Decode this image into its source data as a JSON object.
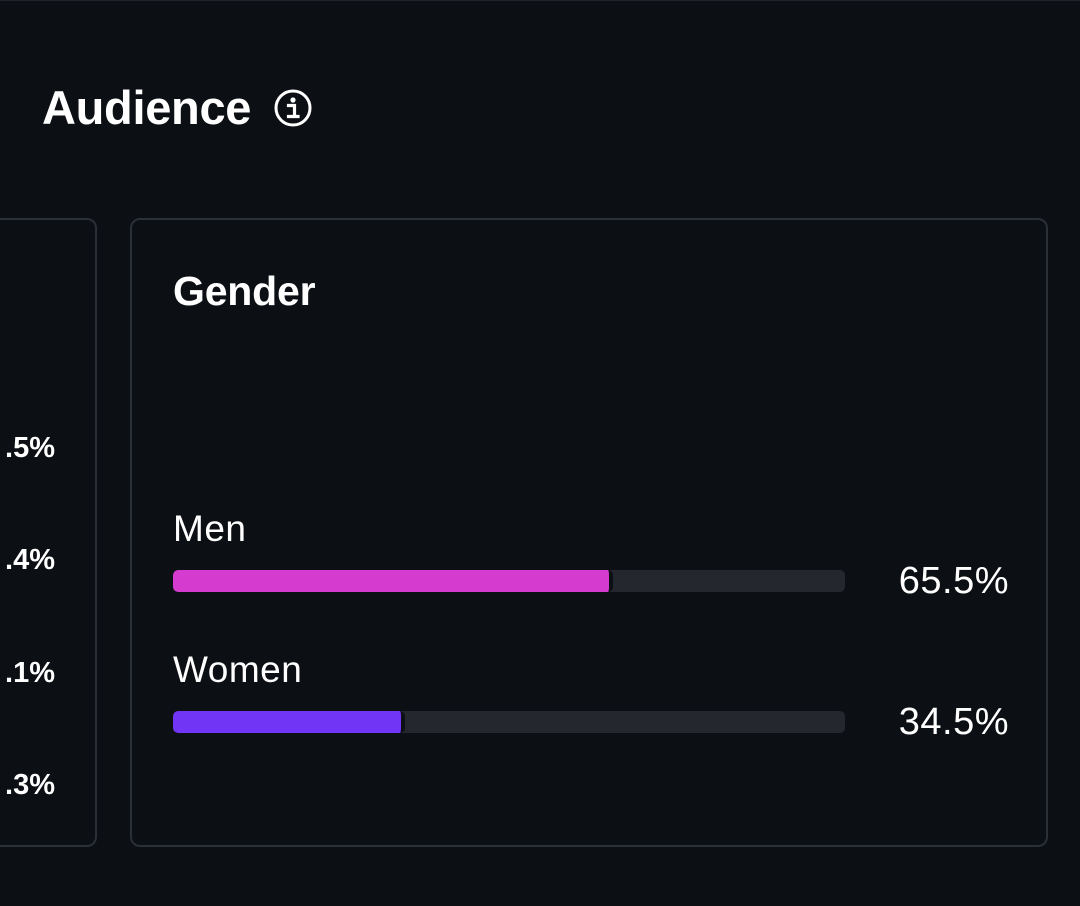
{
  "section": {
    "title": "Audience",
    "info_icon": "info-circle-icon"
  },
  "left_card": {
    "values": [
      ".5%",
      ".4%",
      ".1%",
      ".3%"
    ]
  },
  "gender": {
    "title": "Gender",
    "items": [
      {
        "label": "Men",
        "percent_text": "65.5%",
        "value": 65.5,
        "color": "#d63bd0"
      },
      {
        "label": "Women",
        "percent_text": "34.5%",
        "value": 34.5,
        "color": "#7035f5"
      }
    ],
    "track_color": "#24272e"
  }
}
